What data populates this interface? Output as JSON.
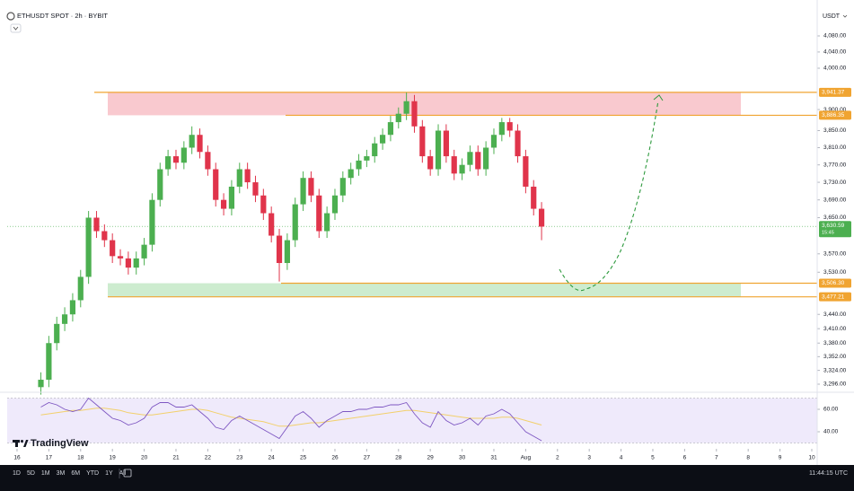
{
  "chart_data": {
    "type": "candlestick",
    "title": "ETHUSDT SPOT · 2h · BYBIT",
    "currency": "USDT",
    "log_scale": true,
    "grid": false,
    "up_color": "#4caf50",
    "down_color": "#e0344b",
    "x": [
      0.75,
      1,
      1.25,
      1.5,
      1.75,
      2,
      2.25,
      2.5,
      2.75,
      3,
      3.25,
      3.5,
      3.75,
      4,
      4.25,
      4.5,
      4.75,
      5,
      5.25,
      5.5,
      5.75,
      6,
      6.25,
      6.5,
      6.75,
      7,
      7.25,
      7.5,
      7.75,
      8,
      8.25,
      8.5,
      8.75,
      9,
      9.25,
      9.5,
      9.75,
      10,
      10.25,
      10.5,
      10.75,
      11,
      11.25,
      11.5,
      11.75,
      12,
      12.25,
      12.5,
      12.75,
      13,
      13.25,
      13.5,
      13.75,
      14,
      14.25,
      14.5,
      14.75,
      15,
      15.25,
      15.5,
      15.75,
      16,
      16.25,
      16.5
    ],
    "open": [
      3290,
      3305,
      3380,
      3420,
      3440,
      3470,
      3520,
      3650,
      3620,
      3600,
      3565,
      3560,
      3540,
      3560,
      3590,
      3690,
      3760,
      3790,
      3775,
      3810,
      3840,
      3800,
      3760,
      3690,
      3670,
      3720,
      3760,
      3730,
      3700,
      3660,
      3610,
      3550,
      3600,
      3680,
      3740,
      3700,
      3620,
      3660,
      3700,
      3740,
      3760,
      3780,
      3790,
      3820,
      3840,
      3870,
      3890,
      3920,
      3860,
      3790,
      3760,
      3850,
      3790,
      3750,
      3770,
      3800,
      3760,
      3810,
      3840,
      3870,
      3850,
      3790,
      3720,
      3670
    ],
    "high": [
      3320,
      3395,
      3435,
      3455,
      3485,
      3535,
      3665,
      3665,
      3635,
      3615,
      3580,
      3575,
      3575,
      3605,
      3705,
      3775,
      3805,
      3805,
      3825,
      3860,
      3855,
      3815,
      3775,
      3705,
      3735,
      3775,
      3775,
      3745,
      3715,
      3675,
      3625,
      3615,
      3695,
      3755,
      3755,
      3715,
      3675,
      3715,
      3755,
      3775,
      3795,
      3805,
      3835,
      3855,
      3885,
      3905,
      3941,
      3935,
      3875,
      3805,
      3865,
      3865,
      3805,
      3785,
      3815,
      3815,
      3825,
      3855,
      3880,
      3880,
      3865,
      3805,
      3735,
      3685
    ],
    "low": [
      3275,
      3290,
      3365,
      3405,
      3425,
      3455,
      3505,
      3605,
      3585,
      3550,
      3545,
      3525,
      3525,
      3545,
      3575,
      3675,
      3745,
      3760,
      3760,
      3795,
      3785,
      3745,
      3675,
      3655,
      3655,
      3705,
      3715,
      3685,
      3645,
      3595,
      3510,
      3535,
      3585,
      3665,
      3685,
      3605,
      3605,
      3645,
      3685,
      3725,
      3745,
      3765,
      3775,
      3805,
      3825,
      3855,
      3875,
      3845,
      3775,
      3745,
      3745,
      3775,
      3735,
      3735,
      3755,
      3745,
      3745,
      3795,
      3825,
      3835,
      3775,
      3705,
      3655,
      3600
    ],
    "close": [
      3305,
      3380,
      3420,
      3440,
      3470,
      3520,
      3650,
      3620,
      3600,
      3565,
      3560,
      3540,
      3560,
      3590,
      3690,
      3760,
      3790,
      3775,
      3810,
      3840,
      3800,
      3760,
      3690,
      3670,
      3720,
      3760,
      3730,
      3700,
      3660,
      3610,
      3550,
      3600,
      3680,
      3740,
      3700,
      3620,
      3660,
      3700,
      3740,
      3760,
      3780,
      3790,
      3820,
      3840,
      3870,
      3890,
      3920,
      3860,
      3790,
      3760,
      3850,
      3790,
      3750,
      3770,
      3800,
      3760,
      3810,
      3840,
      3870,
      3850,
      3790,
      3720,
      3670,
      3630
    ],
    "xlim": [
      -0.31,
      25.17
    ],
    "xticks": [
      {
        "value": 0,
        "label": "16"
      },
      {
        "value": 1,
        "label": "17"
      },
      {
        "value": 2,
        "label": "18"
      },
      {
        "value": 3,
        "label": "19"
      },
      {
        "value": 4,
        "label": "20"
      },
      {
        "value": 5,
        "label": "21"
      },
      {
        "value": 6,
        "label": "22"
      },
      {
        "value": 7,
        "label": "23"
      },
      {
        "value": 8,
        "label": "24"
      },
      {
        "value": 9,
        "label": "25"
      },
      {
        "value": 10,
        "label": "26"
      },
      {
        "value": 11,
        "label": "27"
      },
      {
        "value": 12,
        "label": "28"
      },
      {
        "value": 13,
        "label": "29"
      },
      {
        "value": 14,
        "label": "30"
      },
      {
        "value": 15,
        "label": "31"
      },
      {
        "value": 16,
        "label": "Aug"
      },
      {
        "value": 17,
        "label": "2"
      },
      {
        "value": 18,
        "label": "3"
      },
      {
        "value": 19,
        "label": "4"
      },
      {
        "value": 20,
        "label": "5"
      },
      {
        "value": 21,
        "label": "6"
      },
      {
        "value": 22,
        "label": "7"
      },
      {
        "value": 23,
        "label": "8"
      },
      {
        "value": 24,
        "label": "9"
      },
      {
        "value": 25,
        "label": "10"
      }
    ],
    "ylim": [
      3274.3,
      4120.6
    ],
    "yticks": [
      {
        "value": 4080,
        "label": "4,080.00"
      },
      {
        "value": 4040,
        "label": "4,040.00"
      },
      {
        "value": 4000,
        "label": "4,000.00"
      },
      {
        "value": 3900,
        "label": "3,900.00"
      },
      {
        "value": 3850,
        "label": "3,850.00"
      },
      {
        "value": 3810,
        "label": "3,810.00"
      },
      {
        "value": 3770,
        "label": "3,770.00"
      },
      {
        "value": 3730,
        "label": "3,730.00"
      },
      {
        "value": 3690,
        "label": "3,690.00"
      },
      {
        "value": 3650,
        "label": "3,650.00"
      },
      {
        "value": 3570,
        "label": "3,570.00"
      },
      {
        "value": 3530,
        "label": "3,530.00"
      },
      {
        "value": 3440,
        "label": "3,440.00"
      },
      {
        "value": 3410,
        "label": "3,410.00"
      },
      {
        "value": 3380,
        "label": "3,380.00"
      },
      {
        "value": 3352,
        "label": "3,352.00"
      },
      {
        "value": 3324,
        "label": "3,324.00"
      },
      {
        "value": 3296,
        "label": "3,296.00"
      }
    ],
    "zones": [
      {
        "upper": {
          "value": 3941.37,
          "label": "3,941.37"
        },
        "lower": {
          "value": 3886.35,
          "label": "3,886.35"
        },
        "color": "#f9c9cf"
      },
      {
        "upper": {
          "value": 3506.3,
          "label": "3,506.30"
        },
        "lower": {
          "value": 3477.21,
          "label": "3,477.21"
        },
        "color": "#cdeccf"
      }
    ],
    "level_color": "#f0a431",
    "current_price": {
      "value": 3630.59,
      "label": "3,630.59",
      "countdown": "15:45",
      "color": "#4caf50"
    },
    "rsi": {
      "values": [
        62,
        66,
        64,
        60,
        58,
        60,
        70,
        64,
        58,
        52,
        50,
        46,
        48,
        52,
        62,
        66,
        66,
        62,
        62,
        64,
        58,
        52,
        44,
        42,
        50,
        54,
        50,
        46,
        42,
        38,
        34,
        44,
        54,
        58,
        52,
        44,
        50,
        54,
        58,
        58,
        60,
        60,
        62,
        62,
        64,
        64,
        66,
        56,
        48,
        44,
        58,
        50,
        46,
        48,
        52,
        46,
        54,
        56,
        60,
        56,
        48,
        40,
        36,
        32
      ],
      "ma": [
        55,
        56,
        57,
        58,
        59,
        59,
        60,
        61,
        61,
        60,
        59,
        57,
        56,
        55,
        55,
        56,
        57,
        58,
        59,
        60,
        60,
        59,
        57,
        55,
        53,
        52,
        51,
        50,
        49,
        47,
        45,
        45,
        46,
        47,
        48,
        48,
        49,
        50,
        51,
        52,
        53,
        54,
        55,
        56,
        57,
        58,
        59,
        59,
        58,
        57,
        56,
        55,
        54,
        53,
        52,
        52,
        52,
        52,
        53,
        53,
        52,
        50,
        48,
        46
      ],
      "color": "#7e57c2",
      "ma_color": "#f2d06b",
      "band": [
        30,
        70
      ],
      "band_color": "#efeafb",
      "ylim": [
        27.2,
        72.8
      ],
      "yticks": [
        {
          "value": 60,
          "label": "60.00"
        },
        {
          "value": 40,
          "label": "40.00"
        }
      ]
    }
  },
  "brand": "TradingView",
  "toolbar": {
    "ranges": [
      "1D",
      "5D",
      "1M",
      "3M",
      "6M",
      "YTD",
      "1Y",
      "All"
    ],
    "clock": "11:44:15 UTC"
  }
}
